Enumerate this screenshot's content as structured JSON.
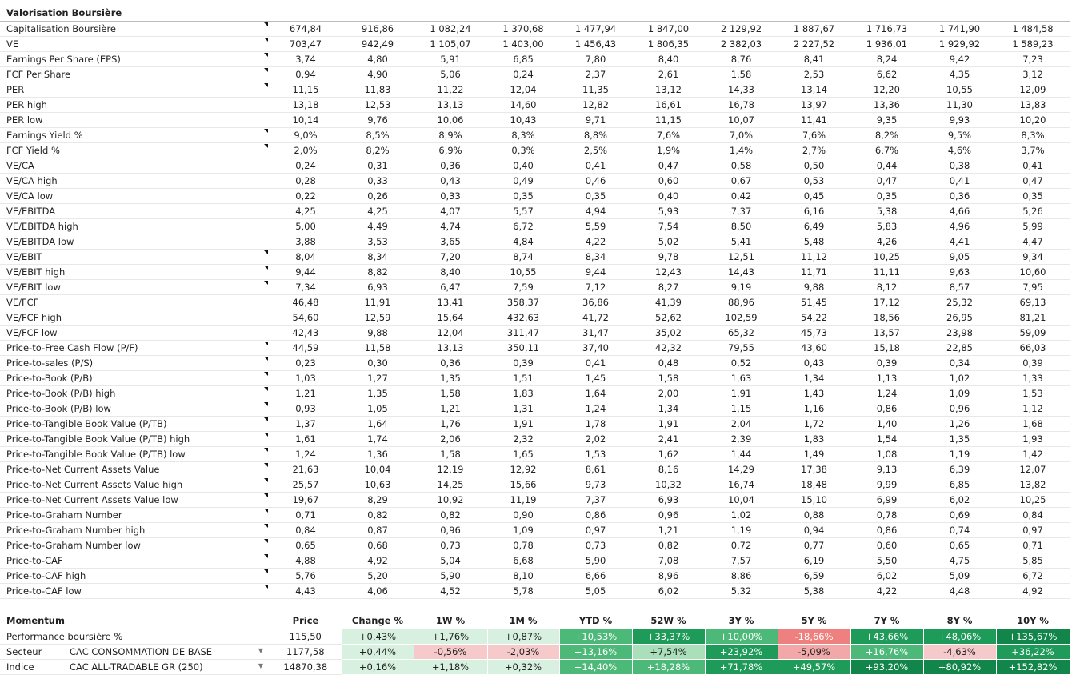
{
  "valuation": {
    "title": "Valorisation Boursière",
    "rows": [
      {
        "label": "Capitalisation Boursière",
        "note": true,
        "values": [
          "674,84",
          "916,86",
          "1 082,24",
          "1 370,68",
          "1 477,94",
          "1 847,00",
          "2 129,92",
          "1 887,67",
          "1 716,73",
          "1 741,90",
          "1 484,58"
        ]
      },
      {
        "label": "VE",
        "note": true,
        "values": [
          "703,47",
          "942,49",
          "1 105,07",
          "1 403,00",
          "1 456,43",
          "1 806,35",
          "2 382,03",
          "2 227,52",
          "1 936,01",
          "1 929,92",
          "1 589,23"
        ]
      },
      {
        "label": "Earnings Per Share (EPS)",
        "note": true,
        "values": [
          "3,74",
          "4,80",
          "5,91",
          "6,85",
          "7,80",
          "8,40",
          "8,76",
          "8,41",
          "8,24",
          "9,42",
          "7,23"
        ]
      },
      {
        "label": "FCF Per Share",
        "note": true,
        "values": [
          "0,94",
          "4,90",
          "5,06",
          "0,24",
          "2,37",
          "2,61",
          "1,58",
          "2,53",
          "6,62",
          "4,35",
          "3,12"
        ]
      },
      {
        "label": "PER",
        "note": true,
        "values": [
          "11,15",
          "11,83",
          "11,22",
          "12,04",
          "11,35",
          "13,12",
          "14,33",
          "13,14",
          "12,20",
          "10,55",
          "12,09"
        ]
      },
      {
        "label": "PER high",
        "note": false,
        "values": [
          "13,18",
          "12,53",
          "13,13",
          "14,60",
          "12,82",
          "16,61",
          "16,78",
          "13,97",
          "13,36",
          "11,30",
          "13,83"
        ]
      },
      {
        "label": "PER low",
        "note": false,
        "values": [
          "10,14",
          "9,76",
          "10,06",
          "10,43",
          "9,71",
          "11,15",
          "10,07",
          "11,41",
          "9,35",
          "9,93",
          "10,20"
        ]
      },
      {
        "label": "Earnings Yield %",
        "note": true,
        "values": [
          "9,0%",
          "8,5%",
          "8,9%",
          "8,3%",
          "8,8%",
          "7,6%",
          "7,0%",
          "7,6%",
          "8,2%",
          "9,5%",
          "8,3%"
        ]
      },
      {
        "label": "FCF Yield %",
        "note": true,
        "values": [
          "2,0%",
          "8,2%",
          "6,9%",
          "0,3%",
          "2,5%",
          "1,9%",
          "1,4%",
          "2,7%",
          "6,7%",
          "4,6%",
          "3,7%"
        ]
      },
      {
        "label": "VE/CA",
        "note": false,
        "values": [
          "0,24",
          "0,31",
          "0,36",
          "0,40",
          "0,41",
          "0,47",
          "0,58",
          "0,50",
          "0,44",
          "0,38",
          "0,41"
        ]
      },
      {
        "label": "VE/CA high",
        "note": false,
        "values": [
          "0,28",
          "0,33",
          "0,43",
          "0,49",
          "0,46",
          "0,60",
          "0,67",
          "0,53",
          "0,47",
          "0,41",
          "0,47"
        ]
      },
      {
        "label": "VE/CA low",
        "note": false,
        "values": [
          "0,22",
          "0,26",
          "0,33",
          "0,35",
          "0,35",
          "0,40",
          "0,42",
          "0,45",
          "0,35",
          "0,36",
          "0,35"
        ]
      },
      {
        "label": "VE/EBITDA",
        "note": false,
        "values": [
          "4,25",
          "4,25",
          "4,07",
          "5,57",
          "4,94",
          "5,93",
          "7,37",
          "6,16",
          "5,38",
          "4,66",
          "5,26"
        ]
      },
      {
        "label": "VE/EBITDA high",
        "note": false,
        "values": [
          "5,00",
          "4,49",
          "4,74",
          "6,72",
          "5,59",
          "7,54",
          "8,50",
          "6,49",
          "5,83",
          "4,96",
          "5,99"
        ]
      },
      {
        "label": "VE/EBITDA low",
        "note": false,
        "values": [
          "3,88",
          "3,53",
          "3,65",
          "4,84",
          "4,22",
          "5,02",
          "5,41",
          "5,48",
          "4,26",
          "4,41",
          "4,47"
        ]
      },
      {
        "label": "VE/EBIT",
        "note": true,
        "values": [
          "8,04",
          "8,34",
          "7,20",
          "8,74",
          "8,34",
          "9,78",
          "12,51",
          "11,12",
          "10,25",
          "9,05",
          "9,34"
        ]
      },
      {
        "label": "VE/EBIT high",
        "note": true,
        "values": [
          "9,44",
          "8,82",
          "8,40",
          "10,55",
          "9,44",
          "12,43",
          "14,43",
          "11,71",
          "11,11",
          "9,63",
          "10,60"
        ]
      },
      {
        "label": "VE/EBIT low",
        "note": true,
        "values": [
          "7,34",
          "6,93",
          "6,47",
          "7,59",
          "7,12",
          "8,27",
          "9,19",
          "9,88",
          "8,12",
          "8,57",
          "7,95"
        ]
      },
      {
        "label": "VE/FCF",
        "note": false,
        "values": [
          "46,48",
          "11,91",
          "13,41",
          "358,37",
          "36,86",
          "41,39",
          "88,96",
          "51,45",
          "17,12",
          "25,32",
          "69,13"
        ]
      },
      {
        "label": "VE/FCF high",
        "note": false,
        "values": [
          "54,60",
          "12,59",
          "15,64",
          "432,63",
          "41,72",
          "52,62",
          "102,59",
          "54,22",
          "18,56",
          "26,95",
          "81,21"
        ]
      },
      {
        "label": "VE/FCF low",
        "note": false,
        "values": [
          "42,43",
          "9,88",
          "12,04",
          "311,47",
          "31,47",
          "35,02",
          "65,32",
          "45,73",
          "13,57",
          "23,98",
          "59,09"
        ]
      },
      {
        "label": "Price-to-Free Cash Flow (P/F)",
        "note": true,
        "values": [
          "44,59",
          "11,58",
          "13,13",
          "350,11",
          "37,40",
          "42,32",
          "79,55",
          "43,60",
          "15,18",
          "22,85",
          "66,03"
        ]
      },
      {
        "label": "Price-to-sales (P/S)",
        "note": true,
        "values": [
          "0,23",
          "0,30",
          "0,36",
          "0,39",
          "0,41",
          "0,48",
          "0,52",
          "0,43",
          "0,39",
          "0,34",
          "0,39"
        ]
      },
      {
        "label": "Price-to-Book (P/B)",
        "note": true,
        "values": [
          "1,03",
          "1,27",
          "1,35",
          "1,51",
          "1,45",
          "1,58",
          "1,63",
          "1,34",
          "1,13",
          "1,02",
          "1,33"
        ]
      },
      {
        "label": "Price-to-Book (P/B) high",
        "note": true,
        "values": [
          "1,21",
          "1,35",
          "1,58",
          "1,83",
          "1,64",
          "2,00",
          "1,91",
          "1,43",
          "1,24",
          "1,09",
          "1,53"
        ]
      },
      {
        "label": "Price-to-Book (P/B) low",
        "note": true,
        "values": [
          "0,93",
          "1,05",
          "1,21",
          "1,31",
          "1,24",
          "1,34",
          "1,15",
          "1,16",
          "0,86",
          "0,96",
          "1,12"
        ]
      },
      {
        "label": "Price-to-Tangible Book Value (P/TB)",
        "note": true,
        "values": [
          "1,37",
          "1,64",
          "1,76",
          "1,91",
          "1,78",
          "1,91",
          "2,04",
          "1,72",
          "1,40",
          "1,26",
          "1,68"
        ]
      },
      {
        "label": "Price-to-Tangible Book Value (P/TB) high",
        "note": true,
        "values": [
          "1,61",
          "1,74",
          "2,06",
          "2,32",
          "2,02",
          "2,41",
          "2,39",
          "1,83",
          "1,54",
          "1,35",
          "1,93"
        ]
      },
      {
        "label": "Price-to-Tangible Book Value (P/TB) low",
        "note": true,
        "values": [
          "1,24",
          "1,36",
          "1,58",
          "1,65",
          "1,53",
          "1,62",
          "1,44",
          "1,49",
          "1,08",
          "1,19",
          "1,42"
        ]
      },
      {
        "label": "Price-to-Net Current Assets Value",
        "note": true,
        "values": [
          "21,63",
          "10,04",
          "12,19",
          "12,92",
          "8,61",
          "8,16",
          "14,29",
          "17,38",
          "9,13",
          "6,39",
          "12,07"
        ]
      },
      {
        "label": "Price-to-Net Current Assets Value high",
        "note": true,
        "values": [
          "25,57",
          "10,63",
          "14,25",
          "15,66",
          "9,73",
          "10,32",
          "16,74",
          "18,48",
          "9,99",
          "6,85",
          "13,82"
        ]
      },
      {
        "label": "Price-to-Net Current Assets Value low",
        "note": true,
        "values": [
          "19,67",
          "8,29",
          "10,92",
          "11,19",
          "7,37",
          "6,93",
          "10,04",
          "15,10",
          "6,99",
          "6,02",
          "10,25"
        ]
      },
      {
        "label": "Price-to-Graham Number",
        "note": true,
        "values": [
          "0,71",
          "0,82",
          "0,82",
          "0,90",
          "0,86",
          "0,96",
          "1,02",
          "0,88",
          "0,78",
          "0,69",
          "0,84"
        ]
      },
      {
        "label": "Price-to-Graham Number high",
        "note": true,
        "values": [
          "0,84",
          "0,87",
          "0,96",
          "1,09",
          "0,97",
          "1,21",
          "1,19",
          "0,94",
          "0,86",
          "0,74",
          "0,97"
        ]
      },
      {
        "label": "Price-to-Graham Number low",
        "note": true,
        "values": [
          "0,65",
          "0,68",
          "0,73",
          "0,78",
          "0,73",
          "0,82",
          "0,72",
          "0,77",
          "0,60",
          "0,65",
          "0,71"
        ]
      },
      {
        "label": "Price-to-CAF",
        "note": true,
        "values": [
          "4,88",
          "4,92",
          "5,04",
          "6,68",
          "5,90",
          "7,08",
          "7,57",
          "6,19",
          "5,50",
          "4,75",
          "5,85"
        ]
      },
      {
        "label": "Price-to-CAF high",
        "note": true,
        "values": [
          "5,76",
          "5,20",
          "5,90",
          "8,10",
          "6,66",
          "8,96",
          "8,86",
          "6,59",
          "6,02",
          "5,09",
          "6,72"
        ]
      },
      {
        "label": "Price-to-CAF low",
        "note": true,
        "values": [
          "4,43",
          "4,06",
          "4,52",
          "5,78",
          "5,05",
          "6,02",
          "5,32",
          "5,38",
          "4,22",
          "4,48",
          "4,92"
        ]
      }
    ]
  },
  "momentum": {
    "title": "Momentum",
    "headers": [
      "Price",
      "Change %",
      "1W %",
      "1M %",
      "YTD %",
      "52W %",
      "3Y %",
      "5Y %",
      "7Y %",
      "8Y %",
      "10Y %"
    ],
    "rows": [
      {
        "label": "Performance boursière %",
        "sub": "",
        "dropdown": false,
        "price": "115,50",
        "cells": [
          {
            "v": "+0,43%",
            "c": "g1"
          },
          {
            "v": "+1,76%",
            "c": "g1"
          },
          {
            "v": "+0,87%",
            "c": "g1"
          },
          {
            "v": "+10,53%",
            "c": "g3"
          },
          {
            "v": "+33,37%",
            "c": "g4"
          },
          {
            "v": "+10,00%",
            "c": "g3"
          },
          {
            "v": "-18,66%",
            "c": "r3"
          },
          {
            "v": "+43,66%",
            "c": "g4"
          },
          {
            "v": "+48,06%",
            "c": "g4"
          },
          {
            "v": "+135,67%",
            "c": "g5"
          }
        ]
      },
      {
        "label": "Secteur",
        "sub": "CAC CONSOMMATION DE BASE",
        "dropdown": true,
        "price": "1177,58",
        "cells": [
          {
            "v": "+0,44%",
            "c": "g1"
          },
          {
            "v": "-0,56%",
            "c": "r1"
          },
          {
            "v": "-2,03%",
            "c": "r1"
          },
          {
            "v": "+13,16%",
            "c": "g3"
          },
          {
            "v": "+7,54%",
            "c": "g2"
          },
          {
            "v": "+23,92%",
            "c": "g4"
          },
          {
            "v": "-5,09%",
            "c": "r2"
          },
          {
            "v": "+16,76%",
            "c": "g3"
          },
          {
            "v": "-4,63%",
            "c": "r1"
          },
          {
            "v": "+36,22%",
            "c": "g4"
          }
        ]
      },
      {
        "label": "Indice",
        "sub": "CAC ALL-TRADABLE GR (250)",
        "dropdown": true,
        "price": "14870,38",
        "cells": [
          {
            "v": "+0,16%",
            "c": "g1"
          },
          {
            "v": "+1,18%",
            "c": "g1"
          },
          {
            "v": "+0,32%",
            "c": "g1"
          },
          {
            "v": "+14,40%",
            "c": "g3"
          },
          {
            "v": "+18,28%",
            "c": "g3"
          },
          {
            "v": "+71,78%",
            "c": "g4"
          },
          {
            "v": "+49,57%",
            "c": "g4"
          },
          {
            "v": "+93,20%",
            "c": "g5"
          },
          {
            "v": "+80,92%",
            "c": "g5"
          },
          {
            "v": "+152,82%",
            "c": "g5"
          }
        ]
      }
    ]
  },
  "colors": {
    "positive_strong": "#12864a",
    "positive_light": "#d8f0df",
    "negative_light": "#f6caca",
    "negative_strong": "#ef8080"
  }
}
